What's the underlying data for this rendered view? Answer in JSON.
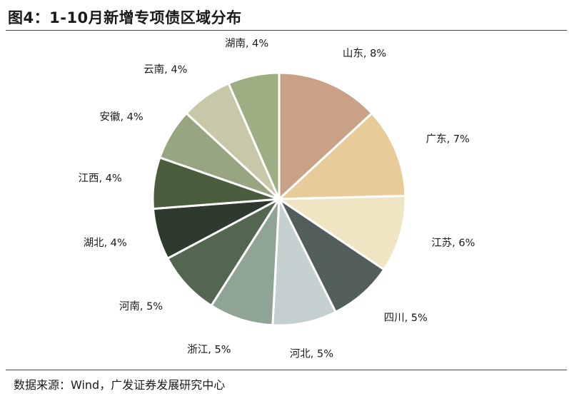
{
  "title": "图4：1-10月新增专项债区域分布",
  "source": "数据来源：Wind，广发证券发展研究中心",
  "chart_data": {
    "type": "pie",
    "title": "图4：1-10月新增专项债区域分布",
    "slices": [
      {
        "label": "山东, 8%",
        "value": 8,
        "color": "#C9A184"
      },
      {
        "label": "广东, 7%",
        "value": 7,
        "color": "#E7CB98"
      },
      {
        "label": "江苏, 6%",
        "value": 6,
        "color": "#F0E5C3"
      },
      {
        "label": "四川, 5%",
        "value": 5,
        "color": "#525E5B"
      },
      {
        "label": "河北, 5%",
        "value": 5,
        "color": "#C4CFCF"
      },
      {
        "label": "浙江, 5%",
        "value": 5,
        "color": "#90A496"
      },
      {
        "label": "河南, 5%",
        "value": 5,
        "color": "#526650"
      },
      {
        "label": "湖北, 4%",
        "value": 4,
        "color": "#2E3A2E"
      },
      {
        "label": "江西, 4%",
        "value": 4,
        "color": "#4A5E3E"
      },
      {
        "label": "安徽, 4%",
        "value": 4,
        "color": "#97A581"
      },
      {
        "label": "云南, 4%",
        "value": 4,
        "color": "#C8C8A8"
      },
      {
        "label": "湖南, 4%",
        "value": 4,
        "color": "#9CAE82"
      }
    ]
  }
}
